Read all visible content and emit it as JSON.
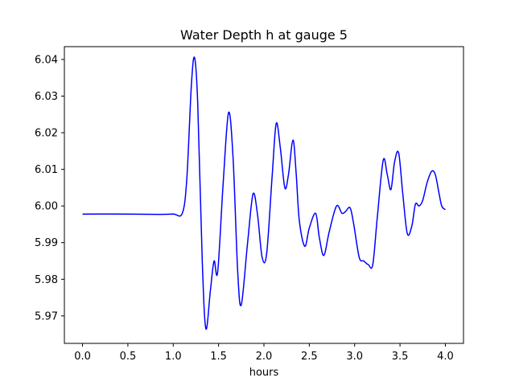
{
  "chart_data": {
    "type": "line",
    "title": "Water Depth h at gauge 5",
    "xlabel": "hours",
    "ylabel": "",
    "xlim": [
      -0.2,
      4.2
    ],
    "ylim": [
      5.9625,
      6.0435
    ],
    "xticks": [
      0.0,
      0.5,
      1.0,
      1.5,
      2.0,
      2.5,
      3.0,
      3.5,
      4.0
    ],
    "xtick_labels": [
      "0.0",
      "0.5",
      "1.0",
      "1.5",
      "2.0",
      "2.5",
      "3.0",
      "3.5",
      "4.0"
    ],
    "yticks": [
      5.97,
      5.98,
      5.99,
      6.0,
      6.01,
      6.02,
      6.03,
      6.04
    ],
    "ytick_labels": [
      "5.97",
      "5.98",
      "5.99",
      "6.00",
      "6.01",
      "6.02",
      "6.03",
      "6.04"
    ],
    "grid": false,
    "series": [
      {
        "color": "#0000ff",
        "x": [
          0.0,
          0.5,
          0.85,
          1.0,
          1.1,
          1.15,
          1.2,
          1.235,
          1.27,
          1.32,
          1.36,
          1.41,
          1.45,
          1.49,
          1.55,
          1.61,
          1.66,
          1.71,
          1.75,
          1.82,
          1.88,
          1.93,
          1.98,
          2.03,
          2.09,
          2.135,
          2.18,
          2.23,
          2.27,
          2.32,
          2.355,
          2.39,
          2.45,
          2.5,
          2.57,
          2.61,
          2.66,
          2.72,
          2.8,
          2.86,
          2.9,
          2.95,
          2.99,
          3.05,
          3.1,
          3.15,
          3.2,
          3.25,
          3.315,
          3.36,
          3.4,
          3.44,
          3.485,
          3.53,
          3.58,
          3.63,
          3.67,
          3.71,
          3.75,
          3.8,
          3.85,
          3.89,
          3.93,
          3.96,
          4.0
        ],
        "y": [
          5.9978,
          5.9978,
          5.9977,
          5.9978,
          5.998,
          6.0075,
          6.033,
          6.0405,
          6.028,
          5.985,
          5.9665,
          5.977,
          5.985,
          5.982,
          6.006,
          6.0255,
          6.013,
          5.9825,
          5.973,
          5.99,
          6.0033,
          5.9975,
          5.986,
          5.987,
          6.008,
          6.0225,
          6.016,
          6.005,
          6.0085,
          6.018,
          6.009,
          5.996,
          5.989,
          5.994,
          5.998,
          5.9915,
          5.9865,
          5.993,
          6.0,
          5.998,
          5.9985,
          5.9995,
          5.995,
          5.986,
          5.985,
          5.984,
          5.984,
          5.997,
          6.0125,
          6.0085,
          6.0045,
          6.012,
          6.0145,
          6.0035,
          5.9925,
          5.9945,
          6.0005,
          6.0,
          6.0015,
          6.0065,
          6.0095,
          6.0085,
          6.0035,
          6.0,
          5.999
        ]
      }
    ]
  }
}
